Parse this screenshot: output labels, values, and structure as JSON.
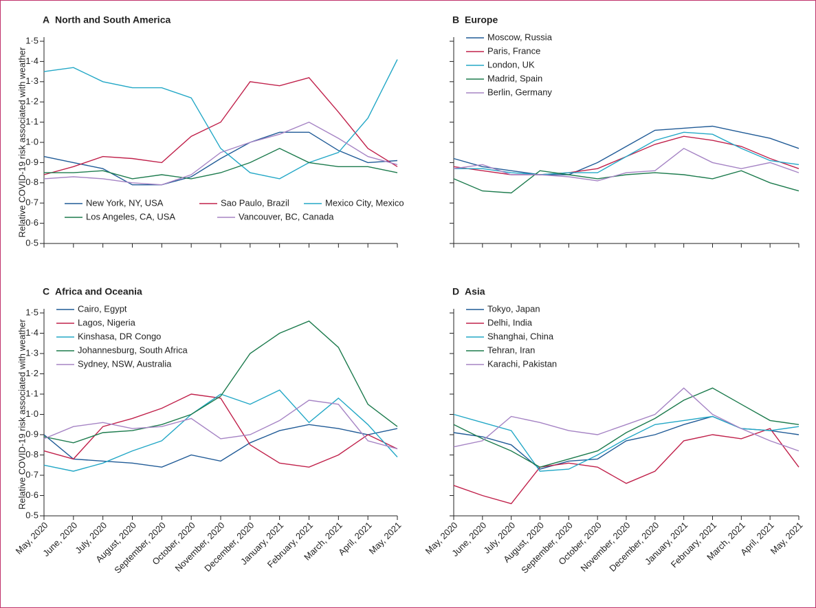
{
  "chart_data": [
    {
      "type": "line",
      "panel": "A",
      "title": "North and South America",
      "y_label": "Relative COVID-19 risk associated with weather",
      "ylim": [
        0.5,
        1.5
      ],
      "ytick_labels": true,
      "yticks": [
        {
          "value": 0.5,
          "label": "0·5"
        },
        {
          "value": 0.6,
          "label": "0·6"
        },
        {
          "value": 0.7,
          "label": "0·7"
        },
        {
          "value": 0.8,
          "label": "0·8"
        },
        {
          "value": 0.9,
          "label": "0·9"
        },
        {
          "value": 1.0,
          "label": "1·0"
        },
        {
          "value": 1.1,
          "label": "1·1"
        },
        {
          "value": 1.2,
          "label": "1·2"
        },
        {
          "value": 1.3,
          "label": "1·3"
        },
        {
          "value": 1.4,
          "label": "1·4"
        },
        {
          "value": 1.5,
          "label": "1·5"
        }
      ],
      "legend": "lower",
      "series": [
        {
          "name": "New York, NY, USA",
          "color": "#1f5a96",
          "values": [
            0.93,
            0.9,
            0.87,
            0.79,
            0.79,
            0.83,
            0.92,
            1.0,
            1.05,
            1.05,
            0.96,
            0.9,
            0.91
          ]
        },
        {
          "name": "Sao Paulo, Brazil",
          "color": "#c0204a",
          "values": [
            0.84,
            0.88,
            0.93,
            0.92,
            0.9,
            1.03,
            1.1,
            1.3,
            1.28,
            1.32,
            1.15,
            0.97,
            0.88
          ]
        },
        {
          "name": "Mexico City, Mexico",
          "color": "#22a7c6",
          "values": [
            1.35,
            1.37,
            1.3,
            1.27,
            1.27,
            1.22,
            0.97,
            0.85,
            0.82,
            0.9,
            0.95,
            1.12,
            1.41
          ]
        },
        {
          "name": "Los Angeles, CA, USA",
          "color": "#1b7a4c",
          "values": [
            0.85,
            0.85,
            0.86,
            0.82,
            0.84,
            0.82,
            0.85,
            0.9,
            0.97,
            0.9,
            0.88,
            0.88,
            0.85
          ]
        },
        {
          "name": "Vancouver, BC, Canada",
          "color": "#a583c4",
          "values": [
            0.82,
            0.83,
            0.82,
            0.8,
            0.79,
            0.84,
            0.95,
            1.0,
            1.04,
            1.1,
            1.02,
            0.93,
            0.89
          ]
        }
      ]
    },
    {
      "type": "line",
      "panel": "B",
      "title": "Europe",
      "ylim": [
        0.5,
        1.5
      ],
      "ytick_labels": false,
      "yticks": [
        0.5,
        0.6,
        0.7,
        0.8,
        0.9,
        1.0,
        1.1,
        1.2,
        1.3,
        1.4,
        1.5
      ],
      "legend": "upper left",
      "series": [
        {
          "name": "Moscow, Russia",
          "color": "#1f5a96",
          "values": [
            0.92,
            0.88,
            0.86,
            0.84,
            0.84,
            0.9,
            0.98,
            1.06,
            1.07,
            1.08,
            1.05,
            1.02,
            0.97
          ]
        },
        {
          "name": "Paris, France",
          "color": "#c0204a",
          "values": [
            0.88,
            0.86,
            0.84,
            0.84,
            0.85,
            0.87,
            0.93,
            0.99,
            1.03,
            1.01,
            0.98,
            0.92,
            0.87
          ]
        },
        {
          "name": "London, UK",
          "color": "#22a7c6",
          "values": [
            0.87,
            0.87,
            0.85,
            0.84,
            0.85,
            0.85,
            0.93,
            1.01,
            1.05,
            1.04,
            0.97,
            0.91,
            0.89
          ]
        },
        {
          "name": "Madrid, Spain",
          "color": "#1b7a4c",
          "values": [
            0.82,
            0.76,
            0.75,
            0.86,
            0.84,
            0.82,
            0.84,
            0.85,
            0.84,
            0.82,
            0.86,
            0.8,
            0.76
          ]
        },
        {
          "name": "Berlin, Germany",
          "color": "#a583c4",
          "values": [
            0.87,
            0.89,
            0.84,
            0.84,
            0.83,
            0.81,
            0.85,
            0.86,
            0.97,
            0.9,
            0.87,
            0.9,
            0.85
          ]
        }
      ]
    },
    {
      "type": "line",
      "panel": "C",
      "title": "Africa and Oceania",
      "y_label": "Relative COVID-19 risk associated with weather",
      "categories": [
        "May, 2020",
        "June, 2020",
        "July, 2020",
        "August, 2020",
        "September, 2020",
        "October, 2020",
        "November, 2020",
        "December, 2020",
        "January, 2021",
        "February, 2021",
        "March, 2021",
        "April, 2021",
        "May, 2021"
      ],
      "ylim": [
        0.5,
        1.5
      ],
      "ytick_labels": true,
      "yticks": [
        {
          "value": 0.5,
          "label": "0·5"
        },
        {
          "value": 0.6,
          "label": "0·6"
        },
        {
          "value": 0.7,
          "label": "0·7"
        },
        {
          "value": 0.8,
          "label": "0·8"
        },
        {
          "value": 0.9,
          "label": "0·9"
        },
        {
          "value": 1.0,
          "label": "1·0"
        },
        {
          "value": 1.1,
          "label": "1·1"
        },
        {
          "value": 1.2,
          "label": "1·2"
        },
        {
          "value": 1.3,
          "label": "1·3"
        },
        {
          "value": 1.4,
          "label": "1·4"
        },
        {
          "value": 1.5,
          "label": "1·5"
        }
      ],
      "legend": "upper left",
      "series": [
        {
          "name": "Cairo, Egypt",
          "color": "#1f5a96",
          "values": [
            0.9,
            0.78,
            0.77,
            0.76,
            0.74,
            0.8,
            0.77,
            0.86,
            0.92,
            0.95,
            0.93,
            0.9,
            0.93
          ]
        },
        {
          "name": "Lagos, Nigeria",
          "color": "#c0204a",
          "values": [
            0.82,
            0.78,
            0.94,
            0.98,
            1.03,
            1.1,
            1.08,
            0.85,
            0.76,
            0.74,
            0.8,
            0.9,
            0.83
          ]
        },
        {
          "name": "Kinshasa, DR Congo",
          "color": "#22a7c6",
          "values": [
            0.75,
            0.72,
            0.76,
            0.82,
            0.87,
            1.0,
            1.1,
            1.05,
            1.12,
            0.96,
            1.08,
            0.95,
            0.79
          ]
        },
        {
          "name": "Johannesburg, South Africa",
          "color": "#1b7a4c",
          "values": [
            0.89,
            0.86,
            0.91,
            0.92,
            0.95,
            1.0,
            1.09,
            1.3,
            1.4,
            1.46,
            1.33,
            1.05,
            0.94
          ]
        },
        {
          "name": "Sydney, NSW, Australia",
          "color": "#a583c4",
          "values": [
            0.88,
            0.94,
            0.96,
            0.93,
            0.94,
            0.98,
            0.88,
            0.9,
            0.97,
            1.07,
            1.05,
            0.87,
            0.83
          ]
        }
      ]
    },
    {
      "type": "line",
      "panel": "D",
      "title": "Asia",
      "categories": [
        "May, 2020",
        "June, 2020",
        "July, 2020",
        "August, 2020",
        "September, 2020",
        "October, 2020",
        "November, 2020",
        "December, 2020",
        "January, 2021",
        "February, 2021",
        "March, 2021",
        "April, 2021",
        "May, 2021"
      ],
      "ylim": [
        0.5,
        1.5
      ],
      "ytick_labels": false,
      "yticks": [
        0.5,
        0.6,
        0.7,
        0.8,
        0.9,
        1.0,
        1.1,
        1.2,
        1.3,
        1.4,
        1.5
      ],
      "legend": "upper left",
      "series": [
        {
          "name": "Tokyo, Japan",
          "color": "#1f5a96",
          "values": [
            0.91,
            0.89,
            0.85,
            0.73,
            0.77,
            0.78,
            0.87,
            0.9,
            0.95,
            0.99,
            0.93,
            0.92,
            0.9
          ]
        },
        {
          "name": "Delhi, India",
          "color": "#c0204a",
          "values": [
            0.65,
            0.6,
            0.56,
            0.74,
            0.76,
            0.74,
            0.66,
            0.72,
            0.87,
            0.9,
            0.88,
            0.93,
            0.74
          ]
        },
        {
          "name": "Shanghai, China",
          "color": "#22a7c6",
          "values": [
            1.0,
            0.96,
            0.92,
            0.72,
            0.73,
            0.8,
            0.88,
            0.95,
            0.97,
            0.99,
            0.93,
            0.92,
            0.94
          ]
        },
        {
          "name": "Tehran, Iran",
          "color": "#1b7a4c",
          "values": [
            0.95,
            0.88,
            0.82,
            0.74,
            0.78,
            0.82,
            0.91,
            0.98,
            1.07,
            1.13,
            1.05,
            0.97,
            0.95
          ]
        },
        {
          "name": "Karachi, Pakistan",
          "color": "#a583c4",
          "values": [
            0.84,
            0.87,
            0.99,
            0.96,
            0.92,
            0.9,
            0.95,
            1.0,
            1.13,
            1.0,
            0.93,
            0.87,
            0.82
          ]
        }
      ]
    }
  ]
}
